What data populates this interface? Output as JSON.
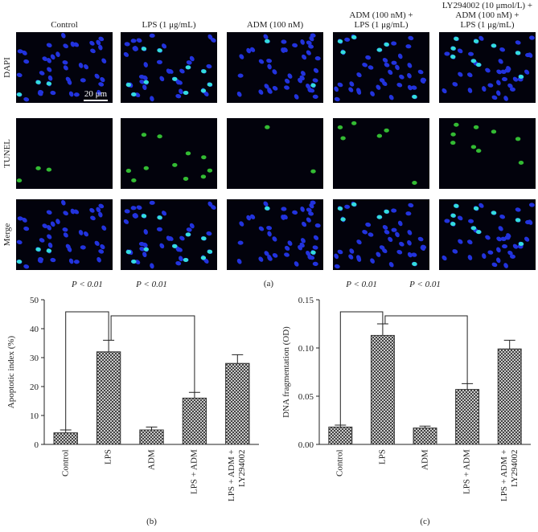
{
  "panel_a": {
    "columns": [
      [
        "Control"
      ],
      [
        "LPS (1 μg/mL)"
      ],
      [
        "ADM (100 nM)"
      ],
      [
        "ADM (100 nM) +",
        "LPS (1 μg/mL)"
      ],
      [
        "LY294002 (10 μmol/L) +",
        "ADM (100 nM) +",
        "LPS (1 μg/mL)"
      ]
    ],
    "rows": [
      "DAPI",
      "TUNEL",
      "Merge"
    ],
    "scale_bar": "20 μm",
    "caption": "(a)"
  },
  "chart_data": [
    {
      "type": "bar",
      "caption": "(b)",
      "ylabel": "Apoptotic index (%)",
      "categories": [
        "Control",
        "LPS",
        "ADM",
        "LPS + ADM",
        "LPS + ADM +\nLY294002"
      ],
      "values": [
        4,
        32,
        5,
        16,
        28
      ],
      "errors": [
        1,
        4,
        1,
        2,
        3
      ],
      "color": "#333333",
      "ylim": [
        0,
        50
      ],
      "yticks": [
        0,
        10,
        20,
        30,
        40,
        50
      ],
      "annotations": [
        "P < 0.01",
        "P < 0.01"
      ]
    },
    {
      "type": "bar",
      "caption": "(c)",
      "ylabel": "DNA fragmentation (OD)",
      "categories": [
        "Control",
        "LPS",
        "ADM",
        "LPS + ADM",
        "LPS + ADM +\nLY294002"
      ],
      "values": [
        0.018,
        0.113,
        0.017,
        0.057,
        0.099
      ],
      "errors": [
        0.002,
        0.012,
        0.002,
        0.006,
        0.009
      ],
      "color": "#333333",
      "ylim": [
        0,
        0.15
      ],
      "yticks": [
        {
          "value": 0,
          "label": "0.00"
        },
        0.05,
        {
          "value": 0.1,
          "label": "0.10"
        },
        0.15
      ],
      "annotations": [
        "P < 0.01",
        "P < 0.01"
      ]
    }
  ]
}
